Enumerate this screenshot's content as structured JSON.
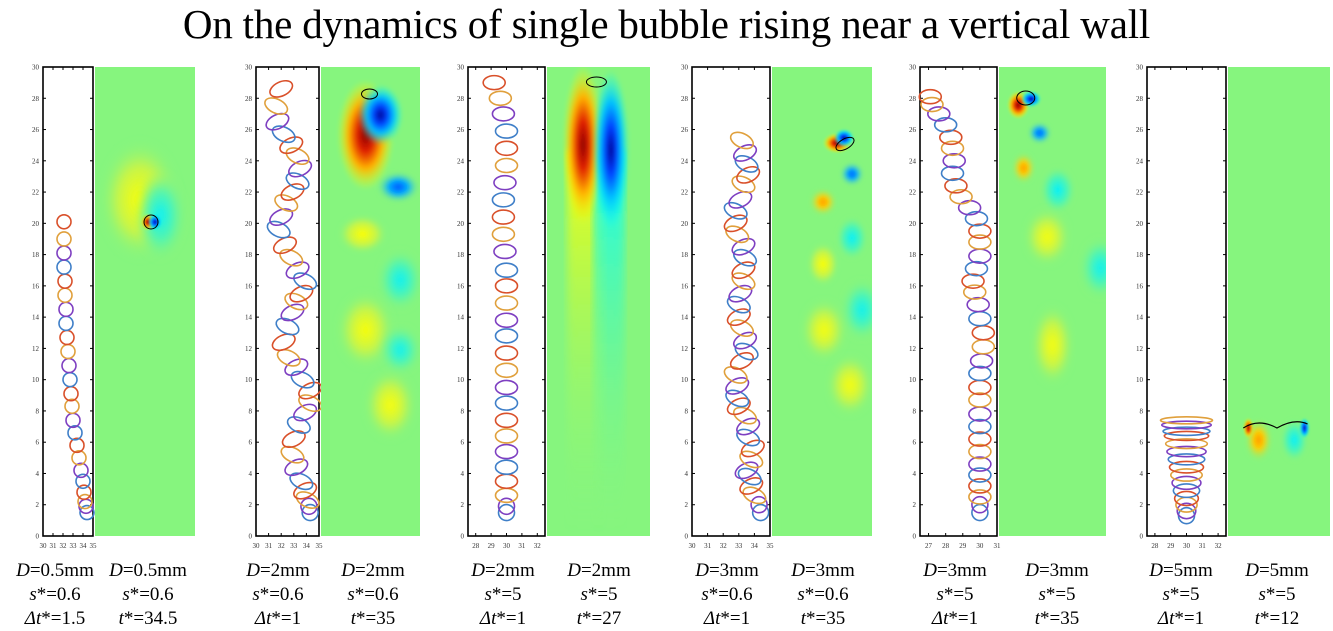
{
  "title": "On the dynamics of single bubble rising near a vertical wall",
  "chart_data": {
    "type": "scatter",
    "title": "On the dynamics of single bubble rising near a vertical wall",
    "description": "Six cases; each shows bubble trajectory snapshots (left, colored bubble outlines cycling purple/orange/red/blue) and a vorticity contour field (right, jet colormap on green background)",
    "ylim": [
      0,
      30
    ],
    "yticks": [
      0,
      2,
      4,
      6,
      8,
      10,
      12,
      14,
      16,
      18,
      20,
      22,
      24,
      26,
      28,
      30
    ],
    "bubble_colors": [
      "#7e3fc1",
      "#e0a03c",
      "#d9502a",
      "#3f7fc8"
    ],
    "field_background": "#86f57e",
    "panels": [
      {
        "id": "case1",
        "xlim": [
          30,
          35
        ],
        "xticks": [
          30,
          31,
          32,
          33,
          34,
          35
        ],
        "bubble_shape": "circle",
        "trajectory_y_range": [
          1.5,
          20.1
        ],
        "trajectory": [
          [
            34.4,
            1.5
          ],
          [
            34.3,
            1.9
          ],
          [
            34.2,
            2.2
          ],
          [
            34.1,
            2.8
          ],
          [
            34.0,
            3.5
          ],
          [
            33.8,
            4.2
          ],
          [
            33.6,
            5.0
          ],
          [
            33.4,
            5.8
          ],
          [
            33.2,
            6.6
          ],
          [
            33.0,
            7.4
          ],
          [
            32.9,
            8.3
          ],
          [
            32.8,
            9.1
          ],
          [
            32.7,
            10.0
          ],
          [
            32.6,
            10.9
          ],
          [
            32.5,
            11.8
          ],
          [
            32.4,
            12.7
          ],
          [
            32.3,
            13.6
          ],
          [
            32.3,
            14.5
          ],
          [
            32.2,
            15.4
          ],
          [
            32.2,
            16.3
          ],
          [
            32.1,
            17.2
          ],
          [
            32.1,
            18.1
          ],
          [
            32.1,
            19.0
          ],
          [
            32.1,
            20.1
          ]
        ],
        "caption": {
          "D": "0.5mm",
          "s": "0.6",
          "dt": "1.5"
        },
        "field_caption": {
          "D": "0.5mm",
          "s": "0.6",
          "t": "34.5"
        }
      },
      {
        "id": "case2",
        "xlim": [
          30,
          35
        ],
        "xticks": [
          30,
          31,
          32,
          33,
          34,
          35
        ],
        "bubble_shape": "tilted-ellipse",
        "trajectory_y_range": [
          1.5,
          28.6
        ],
        "trajectory": [
          [
            34.3,
            1.5
          ],
          [
            34.2,
            1.9
          ],
          [
            34.1,
            2.3
          ],
          [
            33.9,
            2.9
          ],
          [
            33.6,
            3.5
          ],
          [
            33.2,
            4.4
          ],
          [
            32.9,
            5.2
          ],
          [
            33.0,
            6.2
          ],
          [
            33.4,
            7.1
          ],
          [
            33.9,
            7.9
          ],
          [
            34.3,
            8.5
          ],
          [
            34.3,
            9.3
          ],
          [
            33.7,
            10.0
          ],
          [
            33.2,
            10.8
          ],
          [
            32.6,
            11.4
          ],
          [
            32.2,
            12.4
          ],
          [
            32.5,
            13.4
          ],
          [
            32.9,
            14.3
          ],
          [
            33.2,
            15.0
          ],
          [
            33.6,
            15.5
          ],
          [
            33.9,
            16.3
          ],
          [
            33.3,
            17.0
          ],
          [
            32.8,
            17.8
          ],
          [
            32.3,
            18.6
          ],
          [
            31.8,
            19.6
          ],
          [
            32.0,
            20.4
          ],
          [
            32.4,
            21.3
          ],
          [
            32.9,
            22.0
          ],
          [
            33.3,
            22.7
          ],
          [
            33.5,
            23.5
          ],
          [
            33.3,
            24.3
          ],
          [
            32.8,
            25.0
          ],
          [
            32.2,
            25.7
          ],
          [
            31.7,
            26.5
          ],
          [
            31.6,
            27.5
          ],
          [
            32.0,
            28.6
          ]
        ],
        "caption": {
          "D": "2mm",
          "s": "0.6",
          "dt": "1"
        },
        "field_caption": {
          "D": "2mm",
          "s": "0.6",
          "t": "35"
        }
      },
      {
        "id": "case3",
        "xlim": [
          27.5,
          32.5
        ],
        "xticks": [
          28,
          29,
          30,
          31,
          32
        ],
        "bubble_shape": "flat-ellipse",
        "trajectory_y_range": [
          1.5,
          29.0
        ],
        "trajectory": [
          [
            30.0,
            1.5
          ],
          [
            30.0,
            1.9
          ],
          [
            30.0,
            2.6
          ],
          [
            30.0,
            3.5
          ],
          [
            30.0,
            4.4
          ],
          [
            30.0,
            5.4
          ],
          [
            30.0,
            6.4
          ],
          [
            30.0,
            7.4
          ],
          [
            30.0,
            8.5
          ],
          [
            30.0,
            9.5
          ],
          [
            30.0,
            10.6
          ],
          [
            30.0,
            11.7
          ],
          [
            30.0,
            12.8
          ],
          [
            30.0,
            13.8
          ],
          [
            30.0,
            14.9
          ],
          [
            30.0,
            16.0
          ],
          [
            30.0,
            17.0
          ],
          [
            29.9,
            18.2
          ],
          [
            29.8,
            19.3
          ],
          [
            29.8,
            20.4
          ],
          [
            29.8,
            21.5
          ],
          [
            29.9,
            22.6
          ],
          [
            30.0,
            23.7
          ],
          [
            30.0,
            24.8
          ],
          [
            30.0,
            25.9
          ],
          [
            29.8,
            27.0
          ],
          [
            29.6,
            28.0
          ],
          [
            29.2,
            29.0
          ]
        ],
        "caption": {
          "D": "2mm",
          "s": "5",
          "dt": "1"
        },
        "field_caption": {
          "D": "2mm",
          "s": "5",
          "t": "27"
        }
      },
      {
        "id": "case4",
        "xlim": [
          30,
          35
        ],
        "xticks": [
          30,
          31,
          32,
          33,
          34,
          35
        ],
        "bubble_shape": "tilted-ellipse",
        "trajectory_y_range": [
          1.5,
          25.3
        ],
        "trajectory": [
          [
            34.4,
            1.5
          ],
          [
            34.3,
            2.0
          ],
          [
            34.0,
            2.6
          ],
          [
            33.8,
            3.2
          ],
          [
            33.7,
            3.8
          ],
          [
            33.5,
            4.2
          ],
          [
            33.8,
            4.9
          ],
          [
            33.9,
            5.6
          ],
          [
            33.6,
            6.3
          ],
          [
            33.6,
            7.0
          ],
          [
            33.4,
            7.7
          ],
          [
            33.0,
            8.3
          ],
          [
            32.9,
            8.8
          ],
          [
            32.9,
            9.6
          ],
          [
            32.8,
            10.3
          ],
          [
            33.2,
            11.2
          ],
          [
            33.5,
            11.8
          ],
          [
            33.4,
            12.5
          ],
          [
            33.2,
            13.3
          ],
          [
            33.0,
            14.0
          ],
          [
            33.0,
            14.8
          ],
          [
            33.1,
            15.5
          ],
          [
            33.3,
            16.3
          ],
          [
            33.3,
            17.0
          ],
          [
            33.4,
            17.8
          ],
          [
            33.3,
            18.5
          ],
          [
            32.9,
            19.3
          ],
          [
            32.8,
            20.0
          ],
          [
            32.8,
            20.8
          ],
          [
            33.1,
            21.5
          ],
          [
            33.3,
            22.5
          ],
          [
            33.6,
            23.1
          ],
          [
            33.5,
            23.8
          ],
          [
            33.4,
            24.5
          ],
          [
            33.2,
            25.3
          ]
        ],
        "caption": {
          "D": "3mm",
          "s": "0.6",
          "dt": "1"
        },
        "field_caption": {
          "D": "3mm",
          "s": "0.6",
          "t": "35"
        }
      },
      {
        "id": "case5",
        "xlim": [
          26.5,
          31
        ],
        "xticks": [
          27,
          28,
          29,
          30,
          31
        ],
        "bubble_shape": "flat-ellipse",
        "trajectory_y_range": [
          1.5,
          28.1
        ],
        "trajectory": [
          [
            30.0,
            1.5
          ],
          [
            30.0,
            2.0
          ],
          [
            30.0,
            2.5
          ],
          [
            30.0,
            3.2
          ],
          [
            30.0,
            3.9
          ],
          [
            30.0,
            4.6
          ],
          [
            30.0,
            5.4
          ],
          [
            30.0,
            6.2
          ],
          [
            30.0,
            7.0
          ],
          [
            30.0,
            7.8
          ],
          [
            30.0,
            8.7
          ],
          [
            30.0,
            9.5
          ],
          [
            30.0,
            10.4
          ],
          [
            30.1,
            11.2
          ],
          [
            30.2,
            12.1
          ],
          [
            30.2,
            13.0
          ],
          [
            30.0,
            13.9
          ],
          [
            29.9,
            14.8
          ],
          [
            29.7,
            15.6
          ],
          [
            29.6,
            16.3
          ],
          [
            29.8,
            17.1
          ],
          [
            30.0,
            17.9
          ],
          [
            30.0,
            18.8
          ],
          [
            30.0,
            19.5
          ],
          [
            29.8,
            20.3
          ],
          [
            29.4,
            21.0
          ],
          [
            28.9,
            21.7
          ],
          [
            28.6,
            22.4
          ],
          [
            28.4,
            23.2
          ],
          [
            28.5,
            24.0
          ],
          [
            28.4,
            24.8
          ],
          [
            28.3,
            25.5
          ],
          [
            28.0,
            26.3
          ],
          [
            27.6,
            27.0
          ],
          [
            27.2,
            27.6
          ],
          [
            27.1,
            28.1
          ]
        ],
        "caption": {
          "D": "3mm",
          "s": "5",
          "dt": "1"
        },
        "field_caption": {
          "D": "3mm",
          "s": "5",
          "t": "35"
        }
      },
      {
        "id": "case6",
        "xlim": [
          27.5,
          32.5
        ],
        "xticks": [
          28,
          29,
          30,
          31,
          32
        ],
        "bubble_shape": "flattening-cap",
        "trajectory_y_range": [
          1.3,
          7.4
        ],
        "trajectory": [
          [
            30.0,
            1.3
          ],
          [
            30.0,
            1.6
          ],
          [
            30.0,
            2.0
          ],
          [
            30.0,
            2.4
          ],
          [
            30.0,
            2.9
          ],
          [
            30.0,
            3.4
          ],
          [
            30.0,
            3.9
          ],
          [
            30.0,
            4.4
          ],
          [
            30.0,
            4.9
          ],
          [
            30.0,
            5.4
          ],
          [
            30.0,
            5.9
          ],
          [
            30.0,
            6.4
          ],
          [
            30.0,
            6.7
          ],
          [
            30.0,
            7.1
          ],
          [
            30.0,
            7.4
          ]
        ],
        "caption": {
          "D": "5mm",
          "s": "5",
          "dt": "1"
        },
        "field_caption": {
          "D": "5mm",
          "s": "5",
          "t": "12"
        }
      }
    ]
  },
  "caption_labels": {
    "D": "D",
    "s": "s*",
    "dt": "Δt*",
    "t": "t*"
  }
}
